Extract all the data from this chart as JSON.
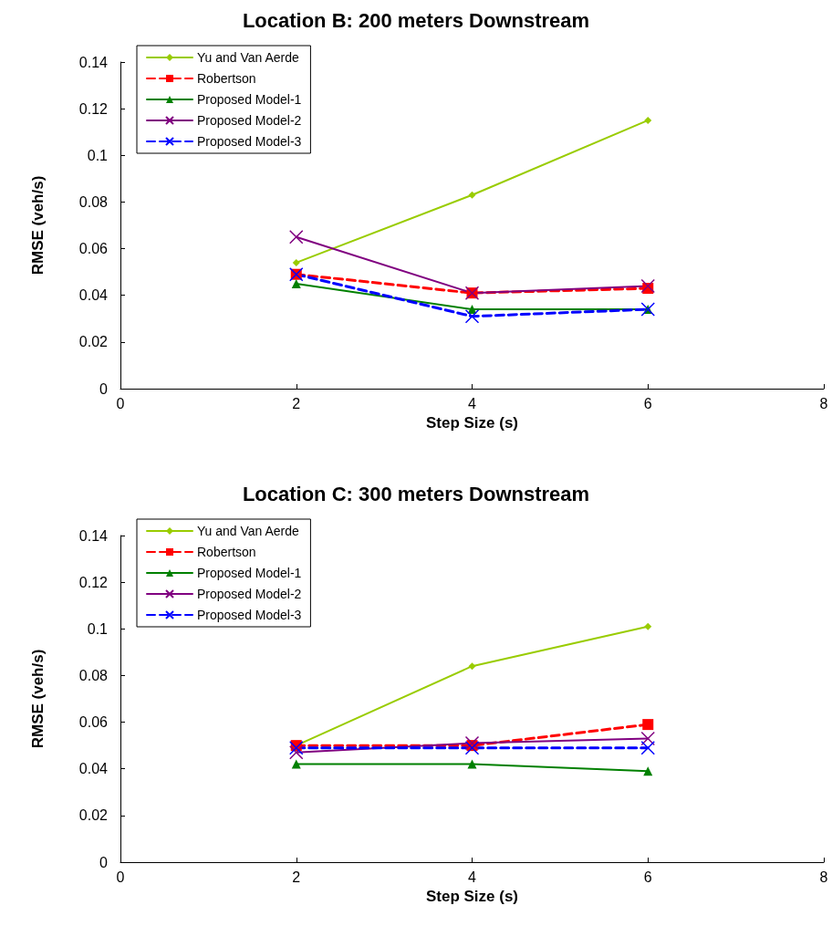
{
  "chart_data": [
    {
      "type": "line",
      "title": "Location B: 200 meters Downstream",
      "xlabel": "Step Size (s)",
      "ylabel": "RMSE (veh/s)",
      "x": [
        2,
        4,
        6
      ],
      "xlim": [
        0,
        8
      ],
      "xticks": [
        0,
        2,
        4,
        6,
        8
      ],
      "ylim": [
        0,
        0.14
      ],
      "yticks": [
        0,
        0.02,
        0.04,
        0.06,
        0.08,
        0.1,
        0.12,
        0.14
      ],
      "grid": false,
      "legend": "top left",
      "series": [
        {
          "name": "Yu and Van Aerde",
          "color": "#99cc00",
          "marker": "diamond",
          "line_style": "solid",
          "values": [
            0.054,
            0.083,
            0.115
          ]
        },
        {
          "name": "Robertson",
          "color": "#ff0000",
          "marker": "square",
          "line_style": "dashed",
          "values": [
            0.049,
            0.041,
            0.043
          ]
        },
        {
          "name": "Proposed Model-1",
          "color": "#008000",
          "marker": "triangle",
          "line_style": "solid",
          "values": [
            0.045,
            0.034,
            0.034
          ]
        },
        {
          "name": "Proposed Model-2",
          "color": "#800080",
          "marker": "cross",
          "line_style": "solid",
          "values": [
            0.065,
            0.041,
            0.044
          ]
        },
        {
          "name": "Proposed Model-3",
          "color": "#0000ff",
          "marker": "cross",
          "line_style": "dashed",
          "values": [
            0.049,
            0.031,
            0.034
          ]
        }
      ]
    },
    {
      "type": "line",
      "title": "Location C: 300 meters Downstream",
      "xlabel": "Step Size (s)",
      "ylabel": "RMSE (veh/s)",
      "x": [
        2,
        4,
        6
      ],
      "xlim": [
        0,
        8
      ],
      "xticks": [
        0,
        2,
        4,
        6,
        8
      ],
      "ylim": [
        0,
        0.14
      ],
      "yticks": [
        0,
        0.02,
        0.04,
        0.06,
        0.08,
        0.1,
        0.12,
        0.14
      ],
      "grid": false,
      "legend": "top left",
      "series": [
        {
          "name": "Yu and Van Aerde",
          "color": "#99cc00",
          "marker": "diamond",
          "line_style": "solid",
          "values": [
            0.05,
            0.084,
            0.101
          ]
        },
        {
          "name": "Robertson",
          "color": "#ff0000",
          "marker": "square",
          "line_style": "dashed",
          "values": [
            0.05,
            0.05,
            0.059
          ]
        },
        {
          "name": "Proposed Model-1",
          "color": "#008000",
          "marker": "triangle",
          "line_style": "solid",
          "values": [
            0.042,
            0.042,
            0.039
          ]
        },
        {
          "name": "Proposed Model-2",
          "color": "#800080",
          "marker": "cross",
          "line_style": "solid",
          "values": [
            0.047,
            0.051,
            0.053
          ]
        },
        {
          "name": "Proposed Model-3",
          "color": "#0000ff",
          "marker": "cross",
          "line_style": "dashed",
          "values": [
            0.049,
            0.049,
            0.049
          ]
        }
      ]
    }
  ]
}
